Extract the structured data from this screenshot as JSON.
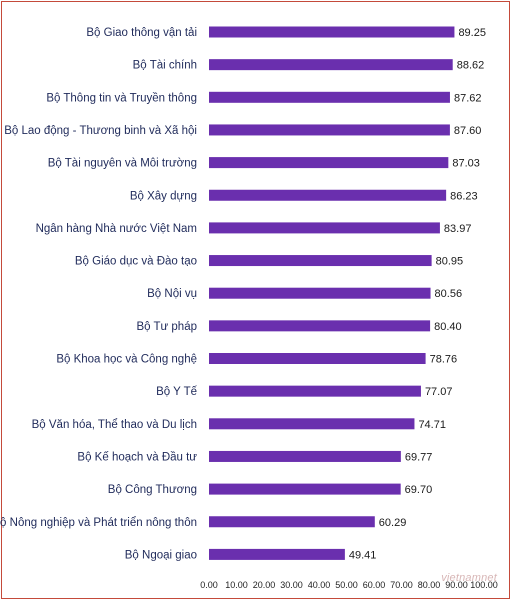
{
  "chart_data": {
    "type": "bar",
    "orientation": "horizontal",
    "title": "",
    "xlabel": "",
    "ylabel": "",
    "categories": [
      "Bộ Giao thông vận tải",
      "Bộ Tài chính",
      "Bộ Thông tin và Truyền thông",
      "Bộ Lao động - Thương binh và Xã hội",
      "Bộ Tài nguyên và Môi trường",
      "Bộ Xây dựng",
      "Ngân hàng Nhà nước Việt Nam",
      "Bộ Giáo dục và Đào tạo",
      "Bộ Nội vụ",
      "Bộ Tư pháp",
      "Bộ Khoa học và Công nghệ",
      "Bộ Y Tế",
      "Bộ Văn hóa, Thể thao và Du lịch",
      "Bộ Kế hoạch và Đầu tư",
      "Bộ Công Thương",
      "Bộ Nông nghiệp và Phát triển nông thôn",
      "Bộ Ngoại giao"
    ],
    "values": [
      89.25,
      88.62,
      87.62,
      87.6,
      87.03,
      86.23,
      83.97,
      80.95,
      80.56,
      80.4,
      78.76,
      77.07,
      74.71,
      69.77,
      69.7,
      60.29,
      49.41
    ],
    "value_labels": [
      "89.25",
      "88.62",
      "87.62",
      "87.60",
      "87.03",
      "86.23",
      "83.97",
      "80.95",
      "80.56",
      "80.40",
      "78.76",
      "77.07",
      "74.71",
      "69.77",
      "69.70",
      "60.29",
      "49.41"
    ],
    "xlim": [
      0,
      100
    ],
    "xticks": [
      0,
      10,
      20,
      30,
      40,
      50,
      60,
      70,
      80,
      90,
      100
    ],
    "xtick_labels": [
      "0.00",
      "10.00",
      "20.00",
      "30.00",
      "40.00",
      "50.00",
      "60.00",
      "70.00",
      "80.00",
      "90.00",
      "100.00"
    ],
    "grid": false,
    "bar_color": "#6a2fae",
    "label_color": "#1f2a5a",
    "frame_color": "#c44a3a"
  },
  "watermark": "vietnamnet"
}
